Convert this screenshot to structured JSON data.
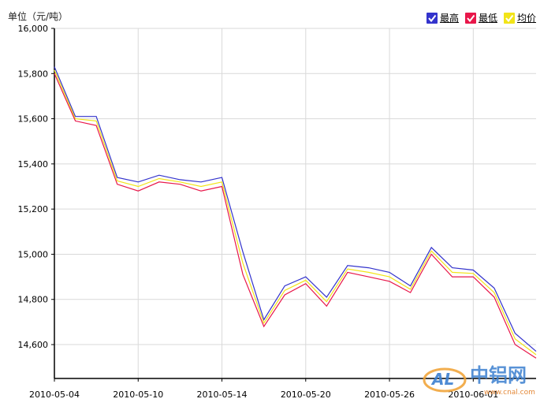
{
  "header": {
    "unit_label": "单位（元/吨）"
  },
  "legend": [
    {
      "label": "最高",
      "color": "#3333cc",
      "checked": true
    },
    {
      "label": "最低",
      "color": "#e8174a",
      "checked": true
    },
    {
      "label": "均价",
      "color": "#f2e418",
      "checked": true
    }
  ],
  "watermark": {
    "text": "中铝网",
    "sub": "www.cnal.com",
    "logo": "AL"
  },
  "chart_data": {
    "type": "line",
    "x": [
      "2010-05-04",
      "2010-05-05",
      "2010-05-06",
      "2010-05-07",
      "2010-05-10",
      "2010-05-11",
      "2010-05-12",
      "2010-05-13",
      "2010-05-14",
      "2010-05-17",
      "2010-05-18",
      "2010-05-19",
      "2010-05-20",
      "2010-05-21",
      "2010-05-24",
      "2010-05-25",
      "2010-05-26",
      "2010-05-27",
      "2010-05-28",
      "2010-05-31",
      "2010-06-01",
      "2010-06-02",
      "2010-06-03",
      "2010-06-04"
    ],
    "tick_labels": [
      "2010-05-04",
      "2010-05-10",
      "2010-05-14",
      "2010-05-20",
      "2010-05-26",
      "2010-06-01"
    ],
    "tick_indices": [
      0,
      4,
      8,
      12,
      16,
      20
    ],
    "series": [
      {
        "name": "最高",
        "values": [
          15830,
          15610,
          15610,
          15340,
          15320,
          15350,
          15330,
          15320,
          15340,
          15010,
          14710,
          14860,
          14900,
          14810,
          14950,
          14940,
          14920,
          14860,
          15030,
          14940,
          14930,
          14850,
          14650,
          14570
        ]
      },
      {
        "name": "均价",
        "values": [
          15815,
          15600,
          15590,
          15325,
          15300,
          15335,
          15320,
          15300,
          15320,
          14960,
          14695,
          14840,
          14885,
          14790,
          14935,
          14920,
          14900,
          14845,
          15015,
          14920,
          14915,
          14830,
          14625,
          14555
        ]
      },
      {
        "name": "最低",
        "values": [
          15800,
          15590,
          15570,
          15310,
          15280,
          15320,
          15310,
          15280,
          15300,
          14910,
          14680,
          14820,
          14870,
          14770,
          14920,
          14900,
          14880,
          14830,
          15000,
          14900,
          14900,
          14810,
          14600,
          14540
        ]
      }
    ],
    "ylim": [
      14450,
      16000
    ],
    "yticks": [
      14600,
      14800,
      15000,
      15200,
      15400,
      15600,
      15800,
      16000
    ],
    "grid": true,
    "legend_position": "top-right"
  }
}
